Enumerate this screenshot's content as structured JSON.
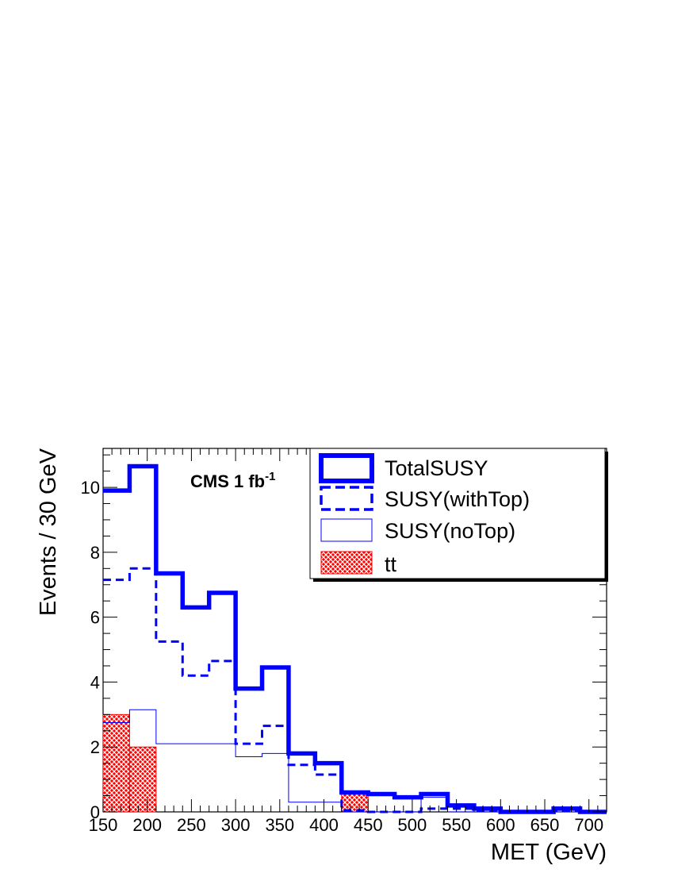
{
  "chart_data": {
    "type": "histogram",
    "xlabel": "MET (GeV)",
    "ylabel": "Events / 30 GeV",
    "xlim": [
      150,
      720
    ],
    "ylim": [
      0,
      11.2
    ],
    "bin_width": 30,
    "x_ticks": [
      150,
      200,
      250,
      300,
      350,
      400,
      450,
      500,
      550,
      600,
      650,
      700
    ],
    "y_ticks": [
      0,
      2,
      4,
      6,
      8,
      10
    ],
    "annotation": {
      "text": "CMS 1 fb",
      "sup": "-1"
    },
    "legend_position": "top-right",
    "bin_edges": [
      150,
      180,
      210,
      240,
      270,
      300,
      330,
      360,
      390,
      420,
      450,
      480,
      510,
      540,
      570,
      600,
      630,
      660,
      690,
      720
    ],
    "series": [
      {
        "name": "TotalSUSY",
        "color": "#0000ff",
        "style": "thick-solid-step",
        "values": [
          9.9,
          10.65,
          7.35,
          6.3,
          6.75,
          3.8,
          4.45,
          1.8,
          1.5,
          0.6,
          0.55,
          0.45,
          0.55,
          0.2,
          0.1,
          0.0,
          0.0,
          0.1,
          0.0
        ]
      },
      {
        "name": "SUSY(withTop)",
        "color": "#0000ff",
        "style": "dashed-step",
        "values": [
          7.15,
          7.5,
          5.25,
          4.2,
          4.65,
          2.1,
          2.65,
          1.45,
          1.15,
          0.05,
          0.0,
          0.0,
          0.1,
          0.1,
          0.05,
          0.0,
          0.0,
          0.05,
          0.0
        ]
      },
      {
        "name": "SUSY(noTop)",
        "color": "#0000ff",
        "style": "thin-solid-step",
        "values": [
          2.75,
          3.15,
          2.1,
          2.1,
          2.1,
          1.7,
          1.8,
          0.3,
          0.3,
          0.0,
          0.0,
          0.0,
          0.45,
          0.0,
          0.0,
          0.0,
          0.0,
          0.0,
          0.0
        ]
      },
      {
        "name": "tt",
        "color": "#ff0000",
        "style": "hatched-fill",
        "values": [
          3.0,
          2.0,
          0.0,
          0.0,
          0.0,
          0.0,
          0.0,
          0.0,
          0.0,
          0.55,
          0.0,
          0.0,
          0.0,
          0.0,
          0.0,
          0.0,
          0.0,
          0.0,
          0.0
        ]
      }
    ]
  }
}
